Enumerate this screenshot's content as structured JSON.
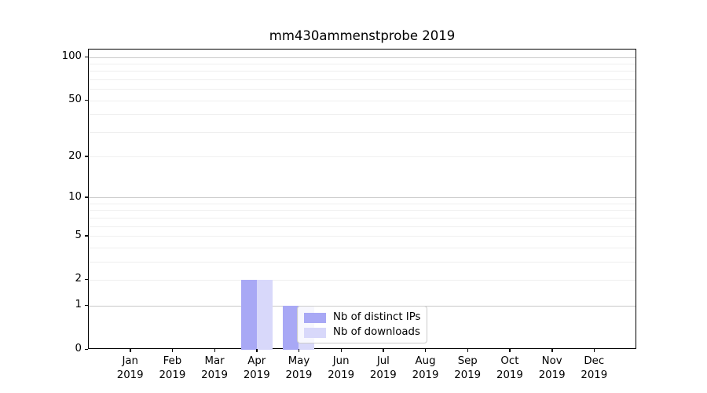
{
  "chart_data": {
    "type": "bar",
    "title": "mm430ammenstprobe 2019",
    "categories": [
      "Jan",
      "Feb",
      "Mar",
      "Apr",
      "May",
      "Jun",
      "Jul",
      "Aug",
      "Sep",
      "Oct",
      "Nov",
      "Dec"
    ],
    "x_year_label": "2019",
    "series": [
      {
        "name": "Nb of distinct IPs",
        "color": "#a8a8f5",
        "values": [
          0,
          0,
          0,
          2,
          1,
          0,
          0,
          0,
          0,
          0,
          0,
          0
        ]
      },
      {
        "name": "Nb of downloads",
        "color": "#d8d8fa",
        "values": [
          0,
          0,
          0,
          2,
          1,
          0,
          0,
          0,
          0,
          0,
          0,
          0
        ]
      }
    ],
    "y_axis": {
      "scale": "log1p",
      "tick_labels": [
        "0",
        "1",
        "2",
        "5",
        "10",
        "20",
        "50",
        "100"
      ],
      "ticks": [
        0,
        1,
        2,
        5,
        10,
        20,
        50,
        100
      ],
      "major_gridlines": [
        1,
        10,
        100
      ],
      "minor_gridlines": [
        2,
        3,
        4,
        5,
        6,
        7,
        8,
        9,
        20,
        30,
        40,
        50,
        60,
        70,
        80,
        90
      ],
      "range_max": 113
    },
    "legend": {
      "position": "lower center-right inside plot"
    },
    "grid": "horizontal",
    "colors": {
      "background": "#ffffff",
      "spine": "#000000",
      "grid_major": "#c9c9c9",
      "grid_minor": "#efefef"
    }
  }
}
